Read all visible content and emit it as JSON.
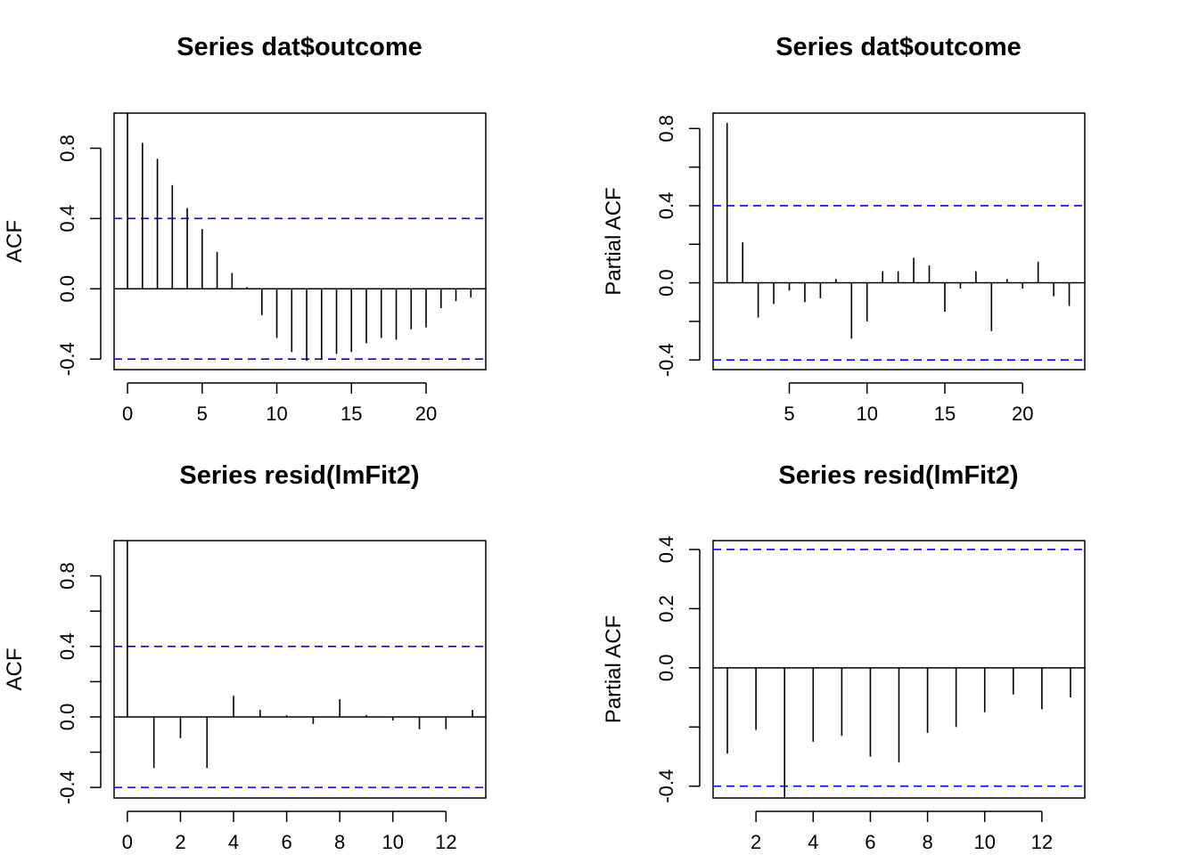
{
  "colors": {
    "spike": "#000000",
    "ci": "#0000ff",
    "frame": "#000000",
    "background": "#ffffff"
  },
  "chart_data": [
    {
      "type": "bar",
      "kind": "acf",
      "title": "Series  dat$outcome",
      "ylabel": "ACF",
      "xlabel": "",
      "x": [
        0,
        1,
        2,
        3,
        4,
        5,
        6,
        7,
        8,
        9,
        10,
        11,
        12,
        13,
        14,
        15,
        16,
        17,
        18,
        19,
        20,
        21,
        22,
        23
      ],
      "values": [
        1.0,
        0.83,
        0.74,
        0.59,
        0.46,
        0.34,
        0.21,
        0.09,
        0.01,
        -0.15,
        -0.28,
        -0.36,
        -0.41,
        -0.4,
        -0.37,
        -0.36,
        -0.31,
        -0.28,
        -0.29,
        -0.23,
        -0.22,
        -0.11,
        -0.07,
        -0.05
      ],
      "ci": [
        0.4,
        -0.4
      ],
      "xlim": [
        -0.9,
        24
      ],
      "ylim": [
        -0.46,
        1.0
      ],
      "xticks": [
        0,
        5,
        10,
        15,
        20
      ],
      "yticks": [
        -0.4,
        0.0,
        0.4,
        0.8
      ],
      "ytick_labels_shown": [
        "-0.4",
        "0.0",
        "0.4",
        "0.8"
      ],
      "grid": false
    },
    {
      "type": "bar",
      "kind": "pacf",
      "title": "Series  dat$outcome",
      "ylabel": "Partial ACF",
      "xlabel": "",
      "x": [
        1,
        2,
        3,
        4,
        5,
        6,
        7,
        8,
        9,
        10,
        11,
        12,
        13,
        14,
        15,
        16,
        17,
        18,
        19,
        20,
        21,
        22,
        23
      ],
      "values": [
        0.83,
        0.21,
        -0.18,
        -0.11,
        -0.04,
        -0.1,
        -0.08,
        0.02,
        -0.29,
        -0.2,
        0.06,
        0.06,
        0.13,
        0.09,
        -0.15,
        -0.03,
        0.06,
        -0.25,
        0.02,
        -0.03,
        0.11,
        -0.07,
        -0.12
      ],
      "ci": [
        0.4,
        -0.4
      ],
      "xlim": [
        0.1,
        24
      ],
      "ylim": [
        -0.45,
        0.88
      ],
      "xticks": [
        5,
        10,
        15,
        20
      ],
      "yticks": [
        -0.4,
        -0.2,
        0.0,
        0.2,
        0.4,
        0.6,
        0.8
      ],
      "ytick_labels_shown": [
        "-0.4",
        "0.0",
        "0.4",
        "0.8"
      ],
      "grid": false
    },
    {
      "type": "bar",
      "kind": "acf",
      "title": "Series  resid(lmFit2)",
      "ylabel": "ACF",
      "xlabel": "",
      "x": [
        0,
        1,
        2,
        3,
        4,
        5,
        6,
        7,
        8,
        9,
        10,
        11,
        12,
        13
      ],
      "values": [
        1.0,
        -0.29,
        -0.12,
        -0.29,
        0.12,
        0.04,
        0.01,
        -0.04,
        0.1,
        0.01,
        -0.02,
        -0.07,
        -0.07,
        0.04
      ],
      "ci": [
        0.4,
        -0.4
      ],
      "xlim": [
        -0.5,
        13.5
      ],
      "ylim": [
        -0.46,
        1.0
      ],
      "xticks": [
        0,
        2,
        4,
        6,
        8,
        10,
        12
      ],
      "yticks": [
        -0.4,
        -0.2,
        0.0,
        0.2,
        0.4,
        0.6,
        0.8
      ],
      "ytick_labels_shown": [
        "-0.4",
        "0.0",
        "0.4",
        "0.8"
      ],
      "grid": false
    },
    {
      "type": "bar",
      "kind": "pacf",
      "title": "Series  resid(lmFit2)",
      "ylabel": "Partial ACF",
      "xlabel": "",
      "x": [
        1,
        2,
        3,
        4,
        5,
        6,
        7,
        8,
        9,
        10,
        11,
        12,
        13
      ],
      "values": [
        -0.29,
        -0.21,
        -0.44,
        -0.25,
        -0.23,
        -0.3,
        -0.32,
        -0.22,
        -0.2,
        -0.15,
        -0.09,
        -0.14,
        -0.1
      ],
      "ci": [
        0.4,
        -0.4
      ],
      "xlim": [
        0.5,
        13.5
      ],
      "ylim": [
        -0.44,
        0.43
      ],
      "xticks": [
        2,
        4,
        6,
        8,
        10,
        12
      ],
      "yticks": [
        -0.4,
        -0.2,
        0.0,
        0.2,
        0.4
      ],
      "ytick_labels_shown": [
        "-0.4",
        "0.0",
        "0.2",
        "0.4"
      ],
      "grid": false
    }
  ]
}
